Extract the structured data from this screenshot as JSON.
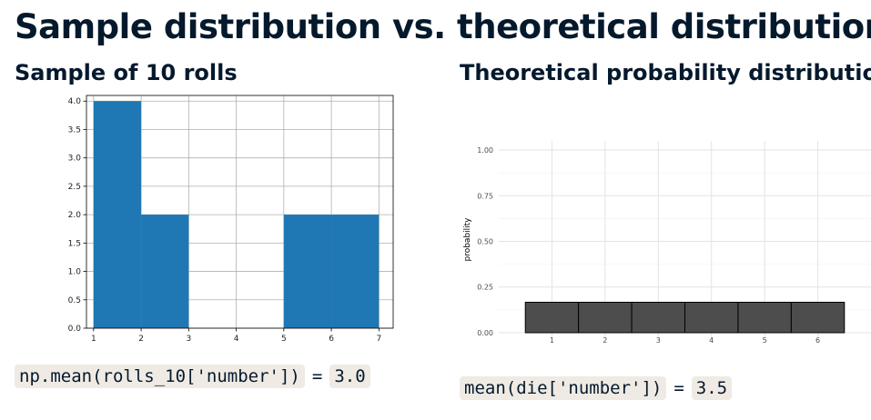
{
  "page": {
    "title": "Sample distribution vs. theoretical distribution"
  },
  "left_panel": {
    "subtitle": "Sample of 10 rolls",
    "code": {
      "expression": "np.mean(rolls_10['number'])",
      "equals": "=",
      "result": "3.0"
    }
  },
  "right_panel": {
    "subtitle": "Theoretical probability distribution",
    "code": {
      "expression": "mean(die['number'])",
      "equals": "=",
      "result": "3.5"
    }
  },
  "chart_data": [
    {
      "type": "bar",
      "bins": [
        [
          1,
          2
        ],
        [
          2,
          3
        ],
        [
          3,
          4
        ],
        [
          4,
          5
        ],
        [
          5,
          6
        ],
        [
          6,
          7
        ]
      ],
      "values": [
        4,
        2,
        0,
        0,
        2,
        2
      ],
      "title": "",
      "xlabel": "",
      "ylabel": "",
      "xlim": [
        0.85,
        7.3
      ],
      "ylim": [
        0,
        4.1
      ],
      "x_ticks": [
        "1",
        "2",
        "3",
        "4",
        "5",
        "6",
        "7"
      ],
      "y_ticks": [
        "0.0",
        "0.5",
        "1.0",
        "1.5",
        "2.0",
        "2.5",
        "3.0",
        "3.5",
        "4.0"
      ],
      "grid": true,
      "bar_color": "#1f77b4"
    },
    {
      "type": "bar",
      "categories": [
        "1",
        "2",
        "3",
        "4",
        "5",
        "6"
      ],
      "values": [
        0.1667,
        0.1667,
        0.1667,
        0.1667,
        0.1667,
        0.1667
      ],
      "title": "",
      "xlabel": "",
      "ylabel": "probability",
      "xlim": [
        0,
        7
      ],
      "ylim": [
        -0.03,
        1.05
      ],
      "y_ticks": [
        "0.00",
        "0.25",
        "0.50",
        "0.75",
        "1.00"
      ],
      "grid": true,
      "bar_color": "#4d4d4d"
    }
  ]
}
